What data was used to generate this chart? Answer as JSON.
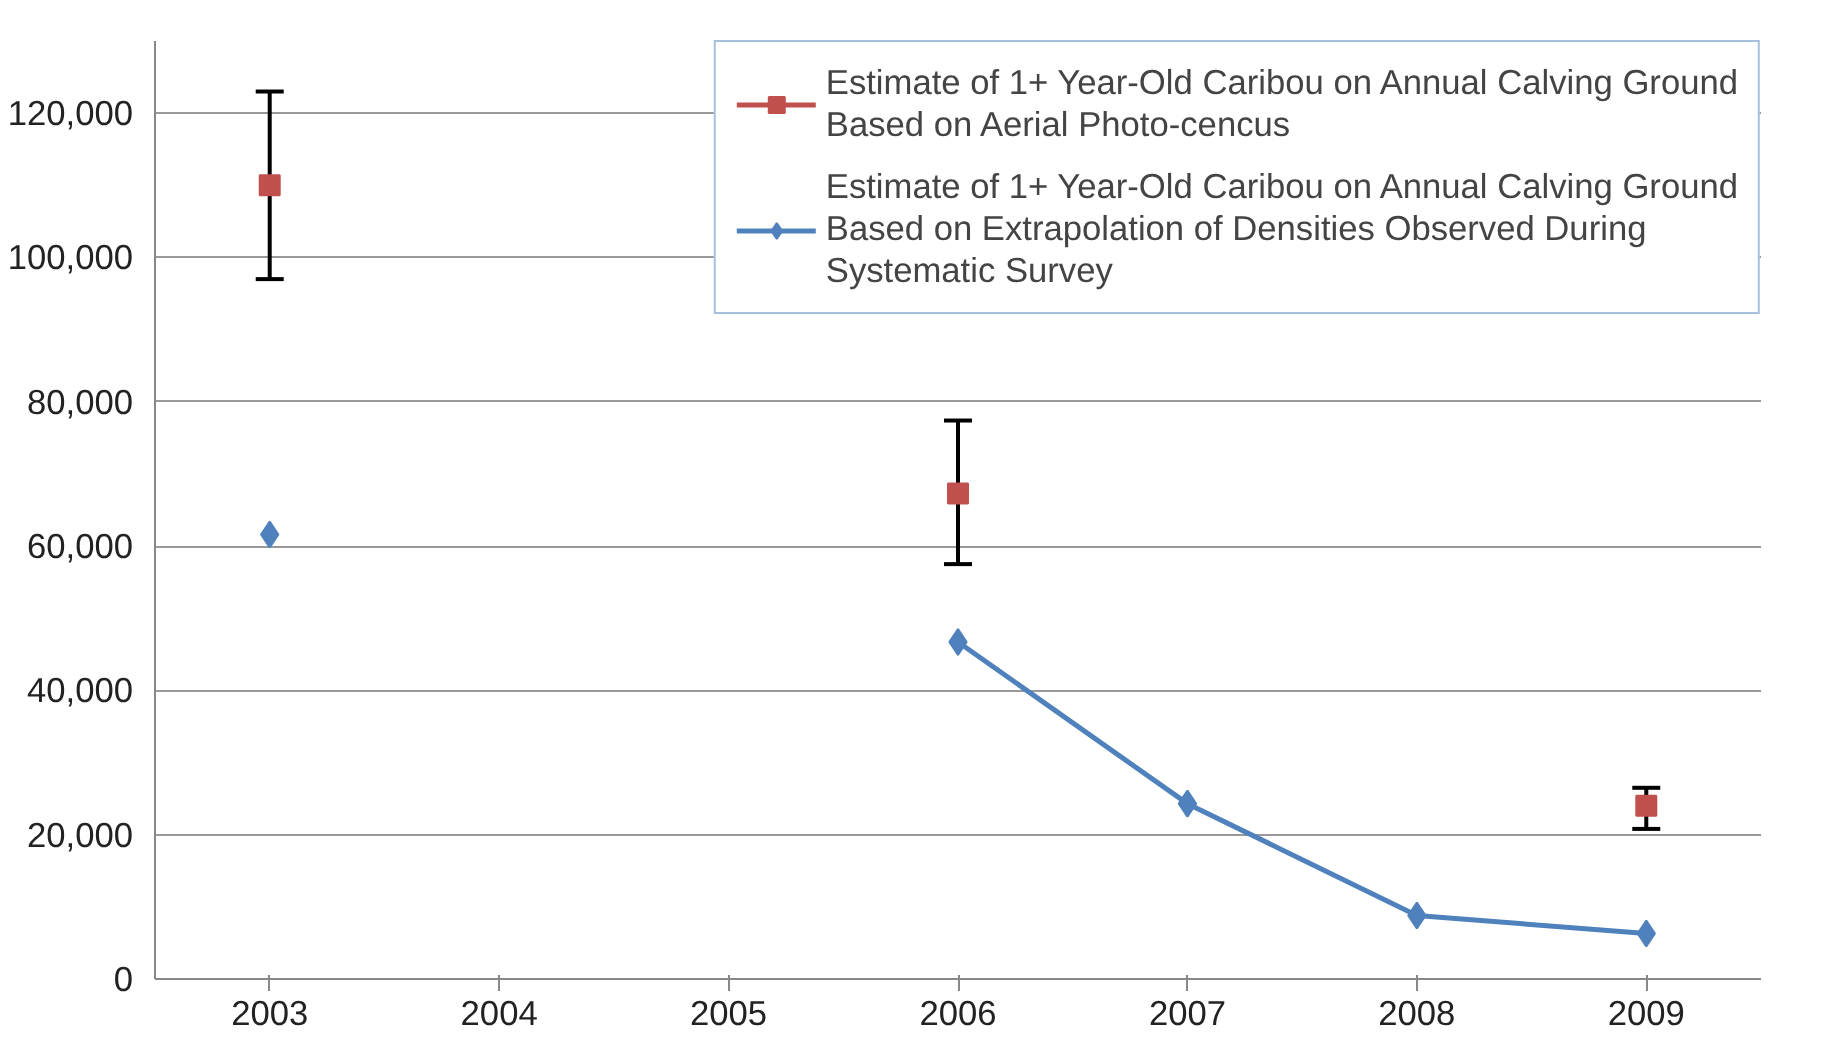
{
  "chart_data": {
    "type": "line",
    "categories": [
      "2003",
      "2004",
      "2005",
      "2006",
      "2007",
      "2008",
      "2009"
    ],
    "series": [
      {
        "name": "Estimate of 1+ Year-Old Caribou on Annual Calving Ground Based on Aerial Photo-cencus",
        "color": "#c0504d",
        "marker": "square",
        "values": [
          110000,
          null,
          null,
          67300,
          null,
          null,
          24000
        ],
        "errors": [
          [
            97000,
            123000
          ],
          null,
          null,
          [
            57500,
            77400
          ],
          null,
          null,
          [
            20800,
            26500
          ]
        ]
      },
      {
        "name": "Estimate of 1+ Year-Old Caribou on Annual Calving Ground Based on Extrapolation of Densities Observed During Systematic Survey",
        "color": "#4f81bd",
        "marker": "diamond",
        "values": [
          61600,
          null,
          null,
          46700,
          24300,
          8800,
          6300
        ]
      }
    ],
    "ylim": [
      0,
      130000
    ],
    "yticks": [
      {
        "value": 0,
        "label": "0"
      },
      {
        "value": 20000,
        "label": "20,000"
      },
      {
        "value": 40000,
        "label": "40,000"
      },
      {
        "value": 60000,
        "label": "60,000"
      },
      {
        "value": 80000,
        "label": "80,000"
      },
      {
        "value": 100000,
        "label": "100,000"
      },
      {
        "value": 120000,
        "label": "120,000"
      }
    ],
    "grid": "y",
    "legend": "top right"
  }
}
